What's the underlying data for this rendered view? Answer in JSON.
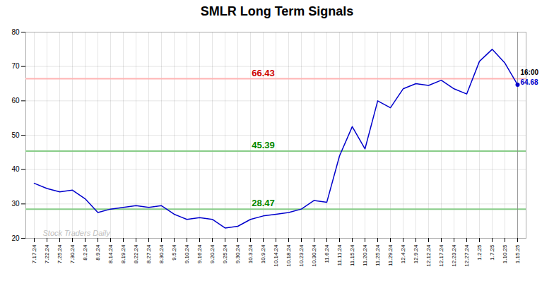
{
  "chart_data": {
    "type": "line",
    "title": "SMLR Long Term Signals",
    "categories": [
      "7.17.24",
      "7.22.24",
      "7.25.24",
      "7.30.24",
      "8.2.24",
      "8.9.24",
      "8.14.24",
      "8.19.24",
      "8.22.24",
      "8.27.24",
      "8.30.24",
      "9.5.24",
      "9.10.24",
      "9.16.24",
      "9.20.24",
      "9.25.24",
      "9.30.24",
      "10.3.24",
      "10.9.24",
      "10.14.24",
      "10.18.24",
      "10.23.24",
      "10.30.24",
      "11.6.24",
      "11.11.24",
      "11.15.24",
      "11.20.24",
      "11.25.24",
      "11.29.24",
      "12.4.24",
      "12.9.24",
      "12.12.24",
      "12.17.24",
      "12.23.24",
      "12.27.24",
      "1.2.25",
      "1.7.25",
      "1.10.25",
      "1.15.25"
    ],
    "values": [
      36.0,
      34.5,
      33.5,
      34.0,
      31.5,
      27.5,
      28.5,
      29.0,
      29.5,
      29.0,
      29.5,
      27.0,
      25.5,
      26.0,
      25.5,
      23.0,
      23.5,
      25.5,
      26.5,
      27.0,
      27.5,
      28.5,
      31.0,
      30.5,
      44.0,
      52.5,
      46.0,
      60.0,
      58.0,
      63.5,
      65.0,
      64.5,
      66.0,
      63.5,
      62.0,
      71.5,
      75.0,
      71.0,
      64.68
    ],
    "color": "#0000cc",
    "ylim": [
      20,
      80
    ],
    "yticks": [
      20,
      30,
      40,
      50,
      60,
      70,
      80
    ],
    "grid": true,
    "reference_lines": [
      {
        "value": 66.43,
        "color": "#ffb3b3",
        "label": "66.43",
        "label_color": "#cc0000"
      },
      {
        "value": 45.39,
        "color": "#88cc88",
        "label": "45.39",
        "label_color": "#008800"
      },
      {
        "value": 28.47,
        "color": "#88cc88",
        "label": "28.47",
        "label_color": "#008800"
      }
    ],
    "annotations": [
      {
        "text": "16:00",
        "color": "#000000"
      },
      {
        "text": "64.68",
        "color": "#0000cc"
      }
    ],
    "watermark": {
      "text": "Stock Traders Daily",
      "color": "#c0c0c0"
    }
  }
}
